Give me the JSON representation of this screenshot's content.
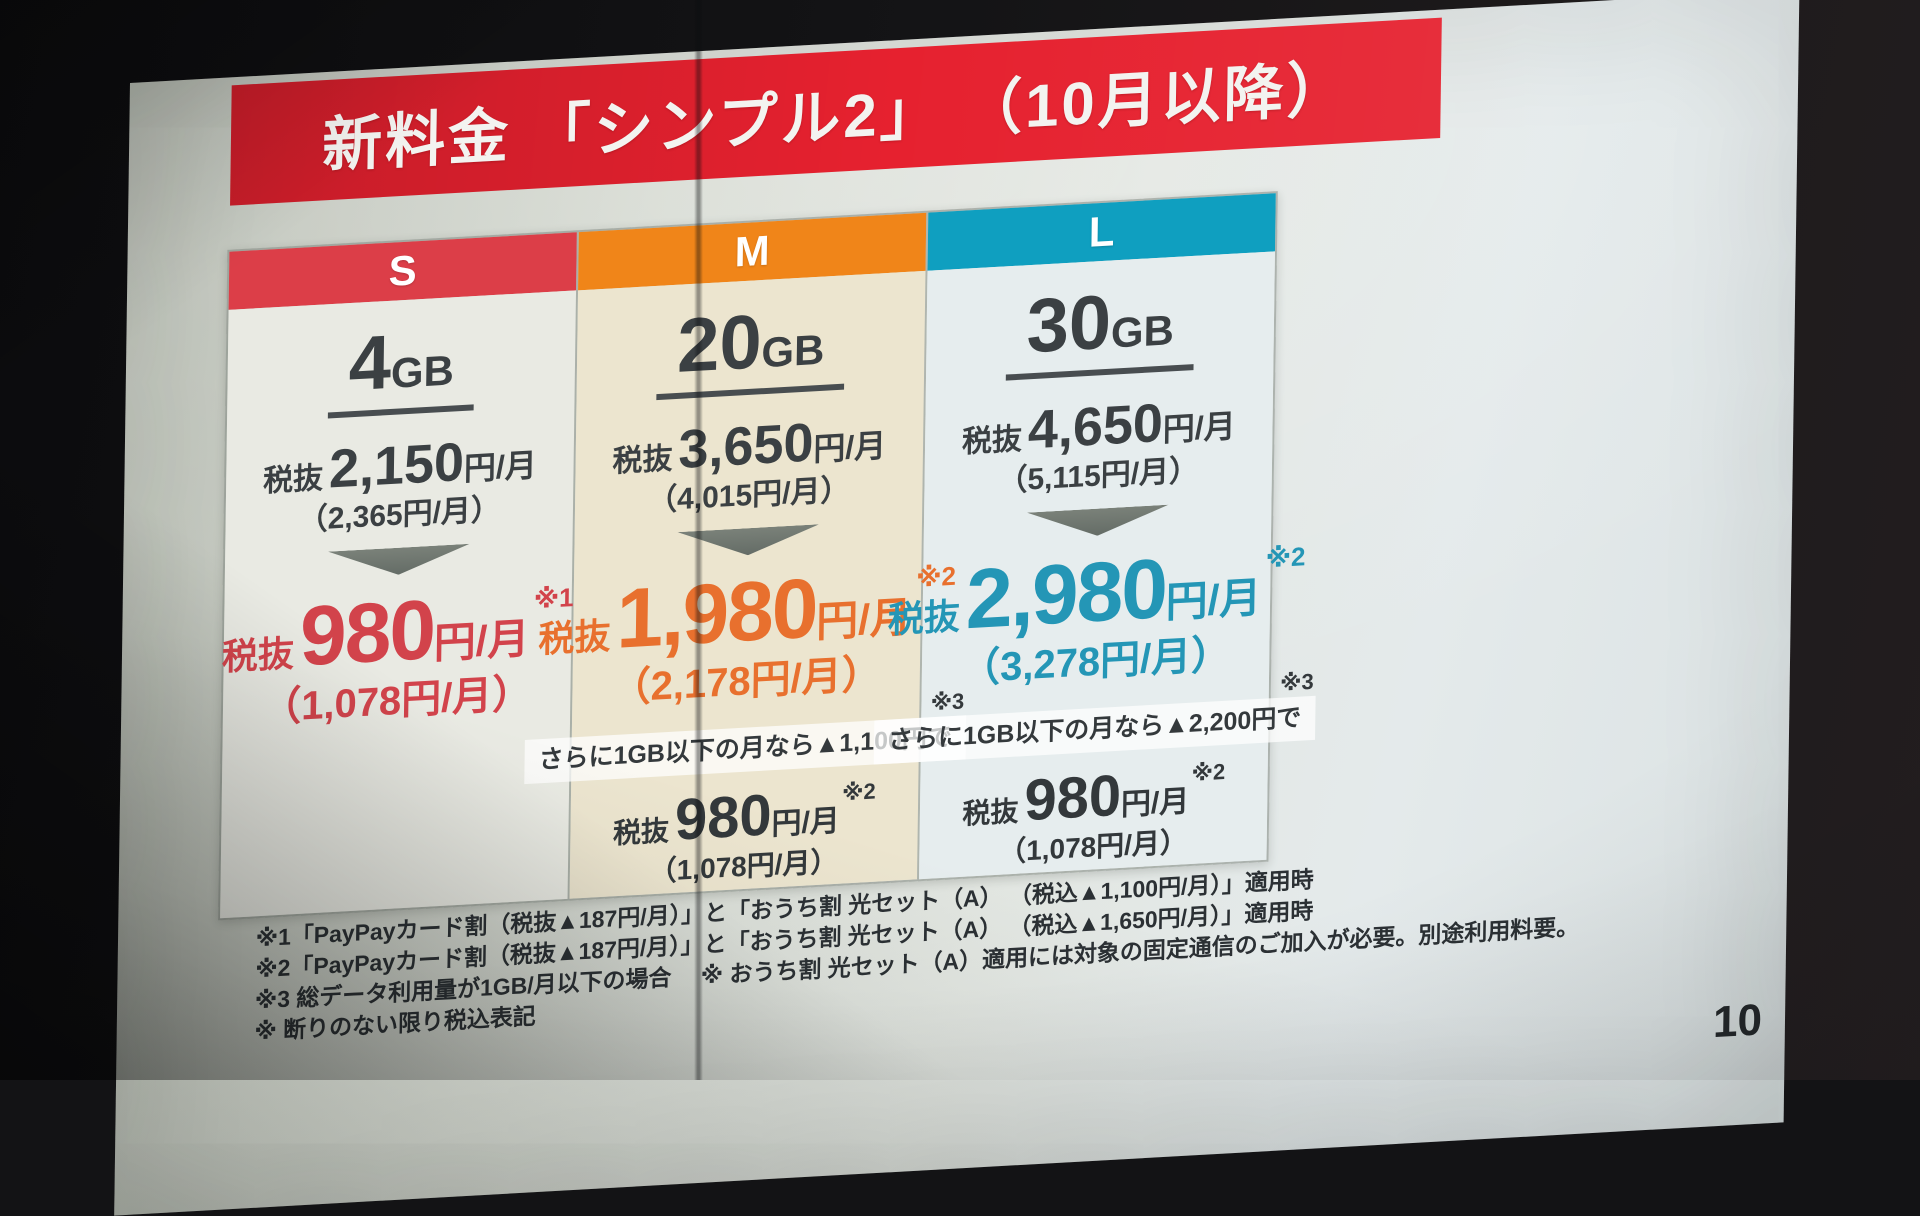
{
  "slide": {
    "title": "新料金 「シンプル2」 （10月以降）",
    "banner_color": "#e6212f",
    "page_number": "10"
  },
  "labels": {
    "tax_excl": "税抜",
    "per_month": "円/月"
  },
  "plans": [
    {
      "tier": "S",
      "header_color": "#dc3e48",
      "price_color": "#d2434b",
      "data_amount": "4",
      "data_unit": "GB",
      "old_price": "2,150",
      "old_price_tax_incl": "（2,365円/月）",
      "new_price": "980",
      "new_price_note": "※1",
      "new_price_tax_incl": "（1,078円/月）"
    },
    {
      "tier": "M",
      "header_color": "#f08519",
      "price_color": "#e8702e",
      "data_amount": "20",
      "data_unit": "GB",
      "old_price": "3,650",
      "old_price_tax_incl": "（4,015円/月）",
      "new_price": "1,980",
      "new_price_note": "※2",
      "new_price_tax_incl": "（2,178円/月）",
      "low_usage_text": "さらに1GB以下の月なら▲1,100円で",
      "low_usage_note": "※3",
      "low_price": "980",
      "low_price_note": "※2",
      "low_price_tax_incl": "（1,078円/月）"
    },
    {
      "tier": "L",
      "header_color": "#0f9fc0",
      "price_color": "#2496b6",
      "data_amount": "30",
      "data_unit": "GB",
      "old_price": "4,650",
      "old_price_tax_incl": "（5,115円/月）",
      "new_price": "2,980",
      "new_price_note": "※2",
      "new_price_tax_incl": "（3,278円/月）",
      "low_usage_text": "さらに1GB以下の月なら▲2,200円で",
      "low_usage_note": "※3",
      "low_price": "980",
      "low_price_note": "※2",
      "low_price_tax_incl": "（1,078円/月）"
    }
  ],
  "footnotes": [
    "※1「PayPayカード割（税抜▲187円/月）」と「おうち割 光セット（A） （税込▲1,100円/月）」適用時",
    "※2「PayPayカード割（税抜▲187円/月）」と「おうち割 光セット（A） （税込▲1,650円/月）」適用時",
    "※3 総データ利用量が1GB/月以下の場合　 ※ おうち割 光セット（A）適用には対象の固定通信のご加入が必要。別途利用料要。",
    "※ 断りのない限り税込表記"
  ]
}
